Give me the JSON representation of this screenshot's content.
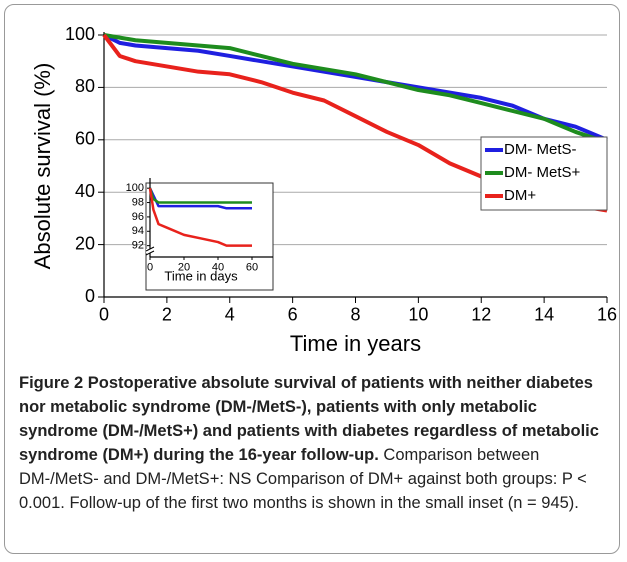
{
  "chart_data": [
    {
      "type": "line",
      "xlabel": "Time in years",
      "ylabel": "Absolute survival (%)",
      "x": [
        0,
        0.5,
        1,
        2,
        3,
        4,
        5,
        6,
        7,
        8,
        9,
        10,
        11,
        12,
        13,
        14,
        15,
        16
      ],
      "series": [
        {
          "name": "DM- MetS-",
          "color": "#1f1fe0",
          "values": [
            100,
            97,
            96,
            95,
            94,
            92,
            90,
            88,
            86,
            84,
            82,
            80,
            78,
            76,
            73,
            68,
            65,
            60
          ]
        },
        {
          "name": "DM- MetS+",
          "color": "#1e8c1e",
          "values": [
            100,
            99,
            98,
            97,
            96,
            95,
            92,
            89,
            87,
            85,
            82,
            79,
            77,
            74,
            71,
            68,
            63,
            59
          ]
        },
        {
          "name": "DM+",
          "color": "#e8221c",
          "values": [
            100,
            92,
            90,
            88,
            86,
            85,
            82,
            78,
            75,
            69,
            63,
            58,
            51,
            46,
            42,
            38,
            35,
            33
          ]
        }
      ],
      "xlim": [
        0,
        16
      ],
      "xticks": [
        0,
        2,
        4,
        6,
        8,
        10,
        12,
        14,
        16
      ],
      "ylim": [
        0,
        100
      ],
      "yticks": [
        0,
        20,
        40,
        60,
        80,
        100
      ],
      "grid": true,
      "legend": "right"
    },
    {
      "type": "line",
      "xlabel": "Time in days",
      "x": [
        0,
        2,
        5,
        10,
        20,
        30,
        40,
        45,
        50,
        60
      ],
      "series": [
        {
          "color": "#1f1fe0",
          "values": [
            100,
            99,
            97.5,
            97.5,
            97.5,
            97.5,
            97.5,
            97.2,
            97.2,
            97.2
          ]
        },
        {
          "color": "#1e8c1e",
          "values": [
            100,
            98.5,
            98,
            98,
            98,
            98,
            98,
            98,
            98,
            98
          ]
        },
        {
          "color": "#e8221c",
          "values": [
            100,
            97,
            95,
            94.5,
            93.5,
            93,
            92.5,
            92,
            92,
            92
          ]
        }
      ],
      "xlim": [
        0,
        60
      ],
      "xticks": [
        0,
        20,
        40,
        60
      ],
      "ylim": [
        90,
        101
      ],
      "yticks": [
        92,
        94,
        96,
        98,
        100
      ],
      "grid": false
    }
  ],
  "caption": {
    "bold": "Figure 2 Postoperative absolute survival of patients with neither diabetes nor metabolic syndrome (DM-/MetS-), patients with only metabolic syndrome (DM-/MetS+) and patients with diabetes regardless of metabolic syndrome (DM+) during the 16-year follow-up.",
    "text": "Comparison between DM-/MetS- and DM-/MetS+: NS Comparison of DM+ against both groups: P < 0.001. Follow-up of the first two months is shown in the small inset (n = 945)."
  }
}
